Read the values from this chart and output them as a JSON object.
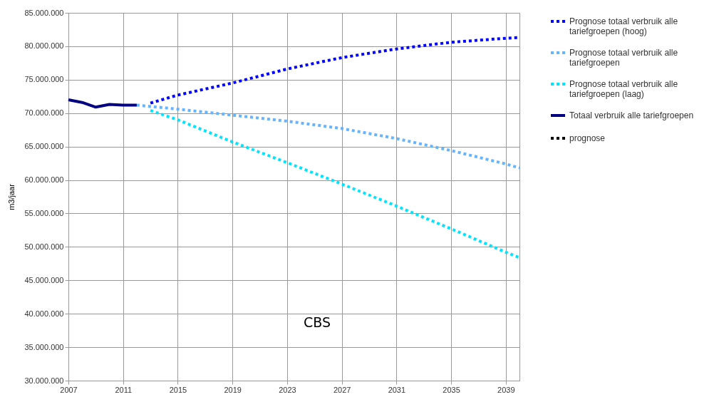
{
  "chart_data": {
    "type": "line",
    "ylabel": "m3/jaar",
    "x": [
      2007,
      2008,
      2009,
      2010,
      2011,
      2012
    ],
    "series": [
      {
        "name": "Prognose totaal verbruik alle tariefgroepen (hoog)",
        "color": "#0000ff",
        "line_style": "dotted",
        "x": [
          2013,
          2015,
          2019,
          2023,
          2027,
          2031,
          2035,
          2039,
          2040
        ],
        "values": [
          71500000,
          72700000,
          74500000,
          76600000,
          78300000,
          79600000,
          80600000,
          81200000,
          81300000
        ]
      },
      {
        "name": "Prognose totaal verbruik alle tariefgroepen",
        "color": "#66b3ff",
        "line_style": "dotted",
        "x": [
          2012,
          2015,
          2019,
          2023,
          2027,
          2031,
          2035,
          2039,
          2040
        ],
        "values": [
          71200000,
          70600000,
          69700000,
          68800000,
          67700000,
          66200000,
          64400000,
          62400000,
          61800000
        ]
      },
      {
        "name": "Prognose totaal verbruik alle tariefgroepen (laag)",
        "color": "#00e5ff",
        "line_style": "dotted",
        "x": [
          2013,
          2015,
          2019,
          2023,
          2027,
          2031,
          2035,
          2039,
          2040
        ],
        "values": [
          70400000,
          69000000,
          65700000,
          62600000,
          59400000,
          56100000,
          52700000,
          49200000,
          48400000
        ]
      },
      {
        "name": "Totaal verbruik alle tariefgroepen",
        "color": "#000080",
        "line_style": "solid",
        "values": [
          72000000,
          71600000,
          70900000,
          71300000,
          71200000,
          71200000
        ]
      },
      {
        "name": "prognose",
        "color": "#000000",
        "line_style": "dotted",
        "values": [
          null,
          null,
          null,
          null,
          null,
          null
        ]
      }
    ],
    "xlim": [
      2007,
      2040
    ],
    "xticks": [
      2007,
      2011,
      2015,
      2019,
      2023,
      2027,
      2031,
      2035,
      2039
    ],
    "ylim": [
      30000000,
      85000000
    ],
    "yticks": [
      {
        "value": 30000000,
        "label": "30.000.000"
      },
      {
        "value": 35000000,
        "label": "35.000.000"
      },
      {
        "value": 40000000,
        "label": "40.000.000"
      },
      {
        "value": 45000000,
        "label": "45.000.000"
      },
      {
        "value": 50000000,
        "label": "50.000.000"
      },
      {
        "value": 55000000,
        "label": "55.000.000"
      },
      {
        "value": 60000000,
        "label": "60.000.000"
      },
      {
        "value": 65000000,
        "label": "65.000.000"
      },
      {
        "value": 70000000,
        "label": "70.000.000"
      },
      {
        "value": 75000000,
        "label": "75.000.000"
      },
      {
        "value": 80000000,
        "label": "80.000.000"
      },
      {
        "value": 85000000,
        "label": "85.000.000"
      }
    ],
    "grid": true,
    "legend": "top right",
    "marker": "none",
    "annotations": [
      "CBS"
    ]
  }
}
